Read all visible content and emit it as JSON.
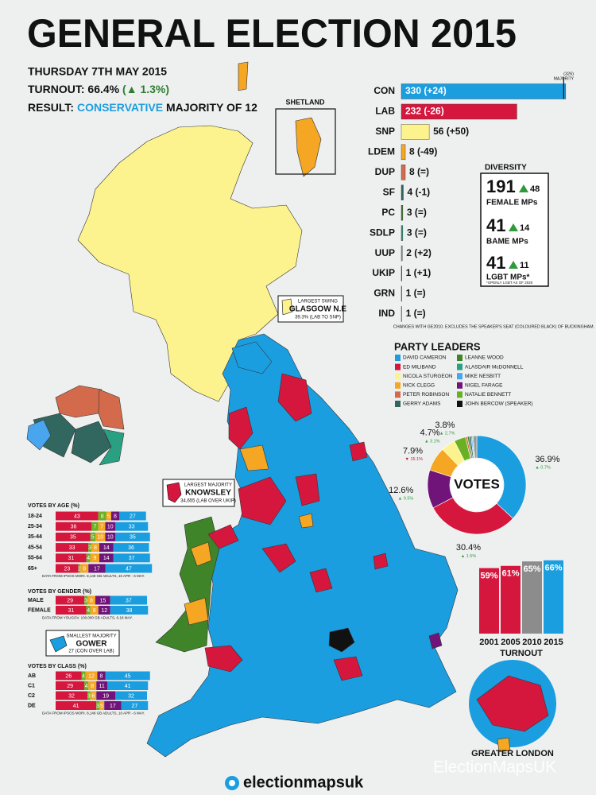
{
  "header": {
    "title": "GENERAL ELECTION 2015",
    "date": "THURSDAY 7TH MAY 2015",
    "turnout": "TURNOUT: 66.4%",
    "turnout_change": "(▲ 1.3%)",
    "result_prefix": "RESULT:",
    "result_party": "CONSERVATIVE",
    "result_suffix": "MAJORITY OF 12"
  },
  "chart_data": [
    {
      "type": "bar",
      "orientation": "horizontal",
      "categories": [
        "CON",
        "LAB",
        "SNP",
        "LDEM",
        "DUP",
        "SF",
        "PC",
        "SDLP",
        "UUP",
        "UKIP",
        "GRN",
        "IND"
      ],
      "values": [
        330,
        232,
        56,
        8,
        8,
        4,
        3,
        3,
        2,
        1,
        1,
        1
      ],
      "value_labels": [
        "330 (+24)",
        "232 (-26)",
        "56 (+50)",
        "8 (-49)",
        "8 (=)",
        "4 (-1)",
        "3 (=)",
        "3 (=)",
        "2 (+2)",
        "1 (+1)",
        "1 (=)",
        "1 (=)"
      ],
      "colors": [
        "#1a9ee0",
        "#d5173e",
        "#fdf38e",
        "#f5a623",
        "#d46a4c",
        "#326760",
        "#3f8428",
        "#2aa082",
        "#48a5ee",
        "#70147a",
        "#6ab023",
        "#dddddd"
      ],
      "xlim": [
        0,
        335
      ],
      "reference_line": {
        "value": 326,
        "label": "(326)",
        "caption": "MAJORITY"
      },
      "note": "CHANGES WITH GE2010. EXCLUDES THE SPEAKER'S SEAT (COLOURED BLACK) OF BUCKINGHAM."
    },
    {
      "type": "pie",
      "donut": true,
      "center_label": "VOTES",
      "values": [
        36.9,
        30.4,
        12.6,
        7.9,
        4.7,
        3.8,
        0.6,
        0.6,
        0.6,
        0.4,
        0.3,
        1.2
      ],
      "value_labels": [
        "36.9%",
        "30.4%",
        "12.6%",
        "7.9%",
        "4.7%",
        "3.8%",
        null,
        null,
        null,
        null,
        null,
        null
      ],
      "change_labels": [
        "▲ 0.7%",
        "▲ 1.5%",
        "▲ 9.5%",
        "▼ 15.1%",
        "▲ 3.1%",
        "▲ 2.7%",
        null,
        null,
        null,
        null,
        null,
        null
      ],
      "change_colors": [
        "#2e9b3a",
        "#2e9b3a",
        "#2e9b3a",
        "#c0182f",
        "#2e9b3a",
        "#2e9b3a",
        null,
        null,
        null,
        null,
        null,
        null
      ],
      "colors": [
        "#1a9ee0",
        "#d5173e",
        "#70147a",
        "#f5a623",
        "#fdf38e",
        "#6ab023",
        "#d46a4c",
        "#3f8428",
        "#326760",
        "#48a5ee",
        "#2aa082",
        "#999999"
      ]
    },
    {
      "type": "bar",
      "orientation": "vertical",
      "title": "TURNOUT",
      "categories": [
        "2001",
        "2005",
        "2010",
        "2015"
      ],
      "values": [
        59,
        61,
        65,
        66
      ],
      "value_labels": [
        "59%",
        "61%",
        "65%",
        "66%"
      ],
      "colors": [
        "#d5173e",
        "#d5173e",
        "#8c8c8c",
        "#1a9ee0"
      ],
      "ylim": [
        0,
        68
      ]
    },
    {
      "type": "stacked_bar",
      "orientation": "horizontal",
      "title": "VOTES BY AGE (%)",
      "note": "DATA FROM IPSOS MORI. 8,149 GB ADULTS, 10 APR - 6 MAY.",
      "categories": [
        "18-24",
        "25-34",
        "35-44",
        "45-54",
        "55-64",
        "65+"
      ],
      "xlim": [
        0,
        100
      ],
      "series": [
        {
          "color": "#d5173e",
          "values": [
            43,
            36,
            35,
            33,
            31,
            23
          ]
        },
        {
          "color": "#6ab023",
          "values": [
            8,
            7,
            5,
            3,
            4,
            2
          ]
        },
        {
          "color": "#f5a623",
          "values": [
            5,
            7,
            10,
            8,
            9,
            8
          ]
        },
        {
          "color": "#70147a",
          "values": [
            8,
            10,
            10,
            14,
            14,
            17
          ]
        },
        {
          "color": "#1a9ee0",
          "values": [
            27,
            33,
            35,
            36,
            37,
            47
          ]
        }
      ]
    },
    {
      "type": "stacked_bar",
      "orientation": "horizontal",
      "title": "VOTES BY GENDER (%)",
      "note": "DATA FROM YOUGOV. 100,000 GB ADULTS, 6-18 MAY.",
      "categories": [
        "MALE",
        "FEMALE"
      ],
      "xlim": [
        0,
        100
      ],
      "series": [
        {
          "color": "#d5173e",
          "values": [
            29,
            31
          ]
        },
        {
          "color": "#6ab023",
          "values": [
            3,
            4
          ]
        },
        {
          "color": "#f5a623",
          "values": [
            8,
            8
          ]
        },
        {
          "color": "#70147a",
          "values": [
            15,
            12
          ]
        },
        {
          "color": "#1a9ee0",
          "values": [
            37,
            38
          ]
        }
      ]
    },
    {
      "type": "stacked_bar",
      "orientation": "horizontal",
      "title": "VOTES BY CLASS (%)",
      "note": "DATA FROM IPSOS MORI. 8,149 GB ADULTS, 10 APR - 6 MAY.",
      "categories": [
        "AB",
        "C1",
        "C2",
        "DE"
      ],
      "xlim": [
        0,
        100
      ],
      "series": [
        {
          "color": "#d5173e",
          "values": [
            26,
            29,
            32,
            41
          ]
        },
        {
          "color": "#6ab023",
          "values": [
            4,
            4,
            3,
            3
          ]
        },
        {
          "color": "#f5a623",
          "values": [
            12,
            8,
            6,
            5
          ]
        },
        {
          "color": "#70147a",
          "values": [
            8,
            11,
            19,
            17
          ]
        },
        {
          "color": "#1a9ee0",
          "values": [
            45,
            41,
            32,
            27
          ]
        }
      ]
    }
  ],
  "diversity": {
    "title": "DIVERSITY",
    "items": [
      {
        "value": 191,
        "change": 48,
        "label": "FEMALE MPs"
      },
      {
        "value": 41,
        "change": 14,
        "label": "BAME MPs"
      },
      {
        "value": 41,
        "change": 11,
        "label": "LGBT MPs*"
      }
    ],
    "footnote": "*OPENLY LGBT AS OF 2020"
  },
  "party_leaders": {
    "title": "PARTY LEADERS",
    "items": [
      {
        "name": "DAVID CAMERON",
        "color": "#1a9ee0"
      },
      {
        "name": "ED MILIBAND",
        "color": "#d5173e"
      },
      {
        "name": "NICOLA STURGEON",
        "color": "#fdf38e"
      },
      {
        "name": "NICK CLEGG",
        "color": "#f5a623"
      },
      {
        "name": "PETER ROBINSON",
        "color": "#d46a4c"
      },
      {
        "name": "GERRY ADAMS",
        "color": "#326760"
      },
      {
        "name": "LEANNE WOOD",
        "color": "#3f8428"
      },
      {
        "name": "ALASDAIR McDONNELL",
        "color": "#2aa082"
      },
      {
        "name": "MIKE NESBITT",
        "color": "#48a5ee"
      },
      {
        "name": "NIGEL FARAGE",
        "color": "#70147a"
      },
      {
        "name": "NATALIE BENNETT",
        "color": "#6ab023"
      },
      {
        "name": "JOHN BERCOW (SPEAKER)",
        "color": "#111111"
      }
    ]
  },
  "map": {
    "shetland_label": "SHETLAND",
    "largest_swing": {
      "caption": "LARGEST SWING",
      "seat": "GLASGOW N.E",
      "detail": "39.3% (LAB TO SNP)"
    },
    "largest_majority": {
      "caption": "LARGEST MAJORITY",
      "seat": "KNOWSLEY",
      "detail": "34,655 (LAB OVER UKIP)"
    },
    "smallest_majority": {
      "caption": "SMALLEST MAJORITY",
      "seat": "GOWER",
      "detail": "27 (CON OVER LAB)"
    },
    "london_label": "GREATER LONDON"
  },
  "footer": {
    "brand": "electionmapsuk",
    "watermark": "ElectionMapsUK"
  }
}
